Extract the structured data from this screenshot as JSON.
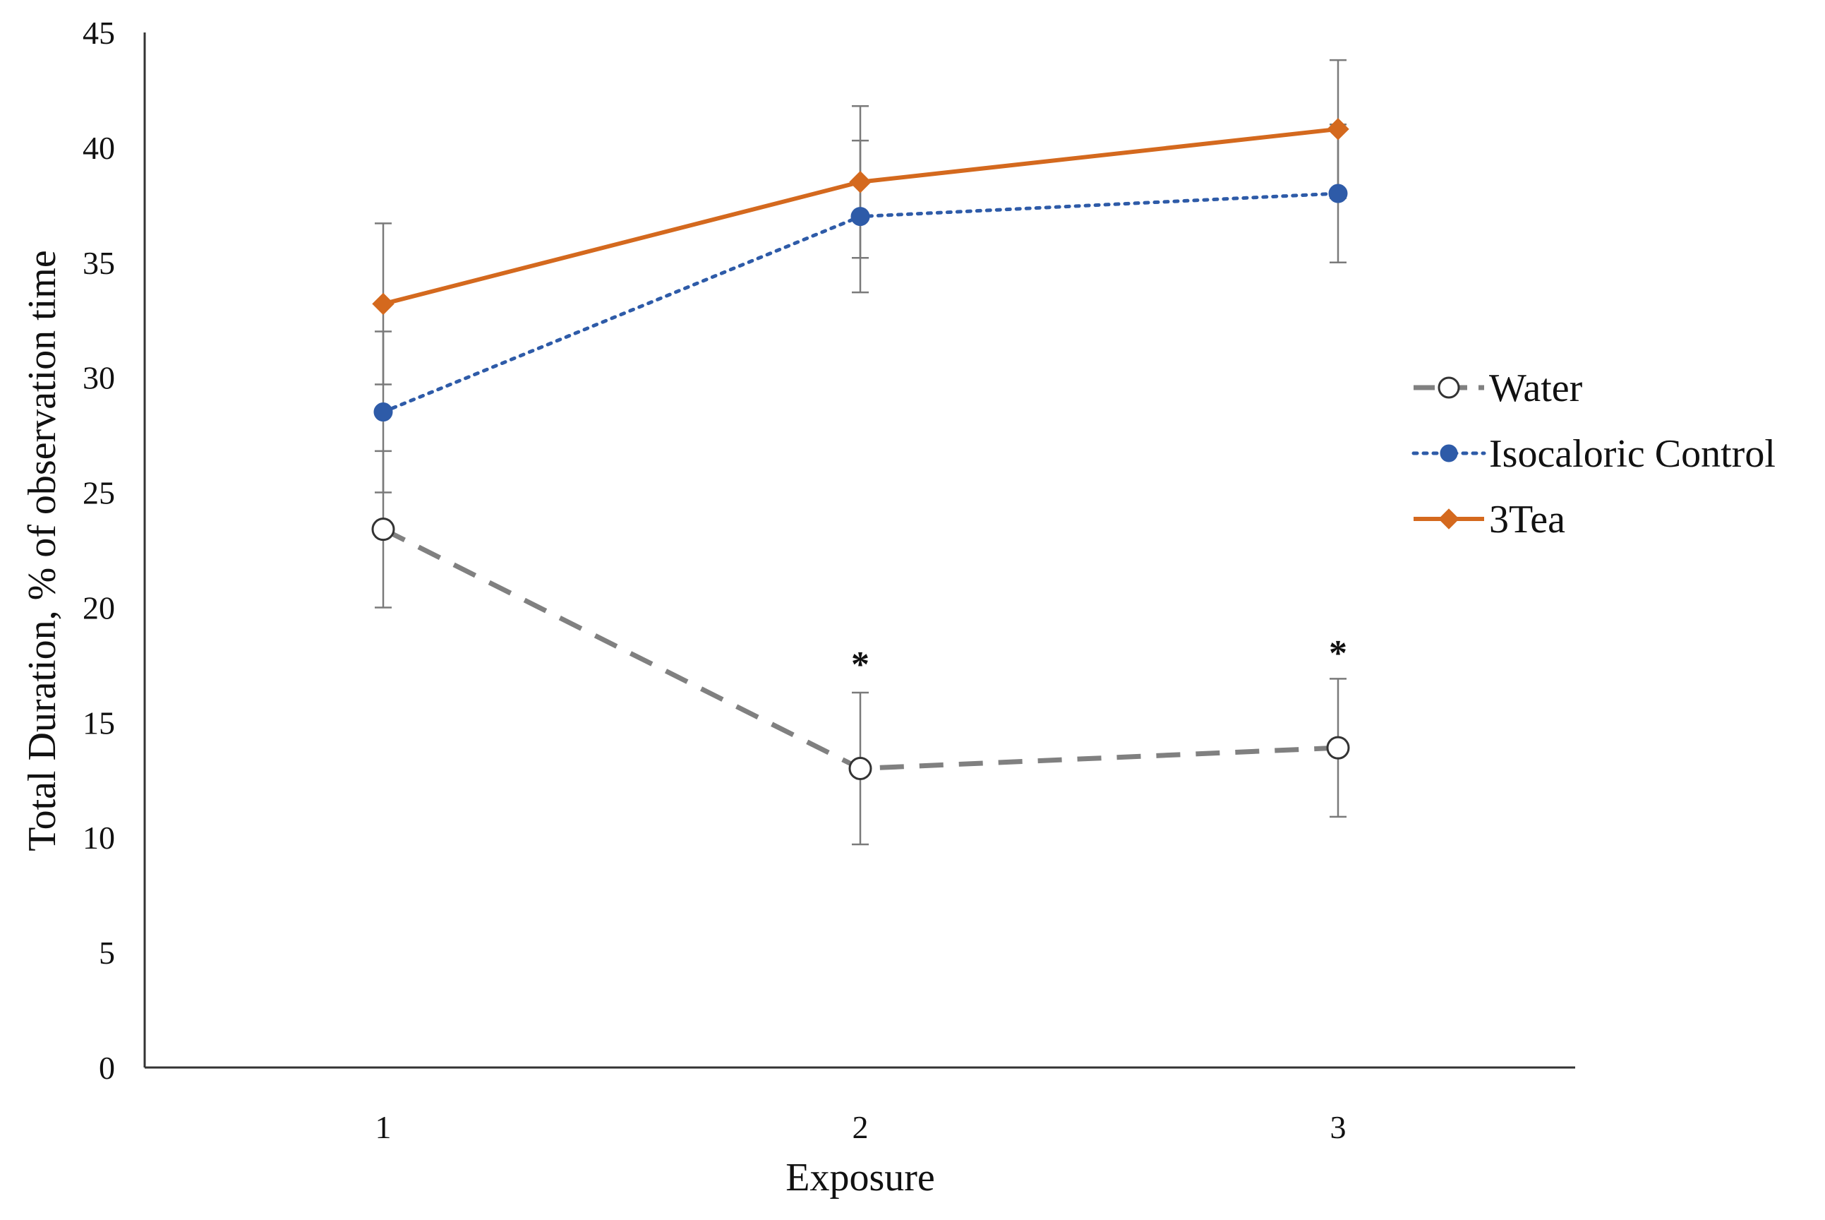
{
  "chart_data": {
    "type": "line",
    "x": [
      1,
      2,
      3
    ],
    "categories": [
      "1",
      "2",
      "3"
    ],
    "xlabel": "Exposure",
    "ylabel": "Total Duration, % of observation time",
    "ylim": [
      0,
      45
    ],
    "yticks": [
      0,
      5,
      10,
      15,
      20,
      25,
      30,
      35,
      40,
      45
    ],
    "grid": false,
    "legend_position": "right",
    "series": [
      {
        "name": "Water",
        "values": [
          23.4,
          13.0,
          13.9
        ],
        "error": [
          3.4,
          3.3,
          3.0
        ],
        "color": "#808080",
        "line_style": "dashed",
        "marker": "open-circle"
      },
      {
        "name": "Isocaloric Control",
        "values": [
          28.5,
          37.0,
          38.0
        ],
        "error": [
          3.5,
          3.3,
          3.0
        ],
        "color": "#2E5BA8",
        "line_style": "dotted",
        "marker": "filled-circle"
      },
      {
        "name": "3Tea",
        "values": [
          33.2,
          38.5,
          40.8
        ],
        "error": [
          3.5,
          3.3,
          3.0
        ],
        "color": "#D4691E",
        "line_style": "solid",
        "marker": "diamond"
      }
    ],
    "annotations": [
      {
        "text": "*",
        "x": 2,
        "y": 17.8
      },
      {
        "text": "*",
        "x": 3,
        "y": 18.3
      }
    ]
  }
}
